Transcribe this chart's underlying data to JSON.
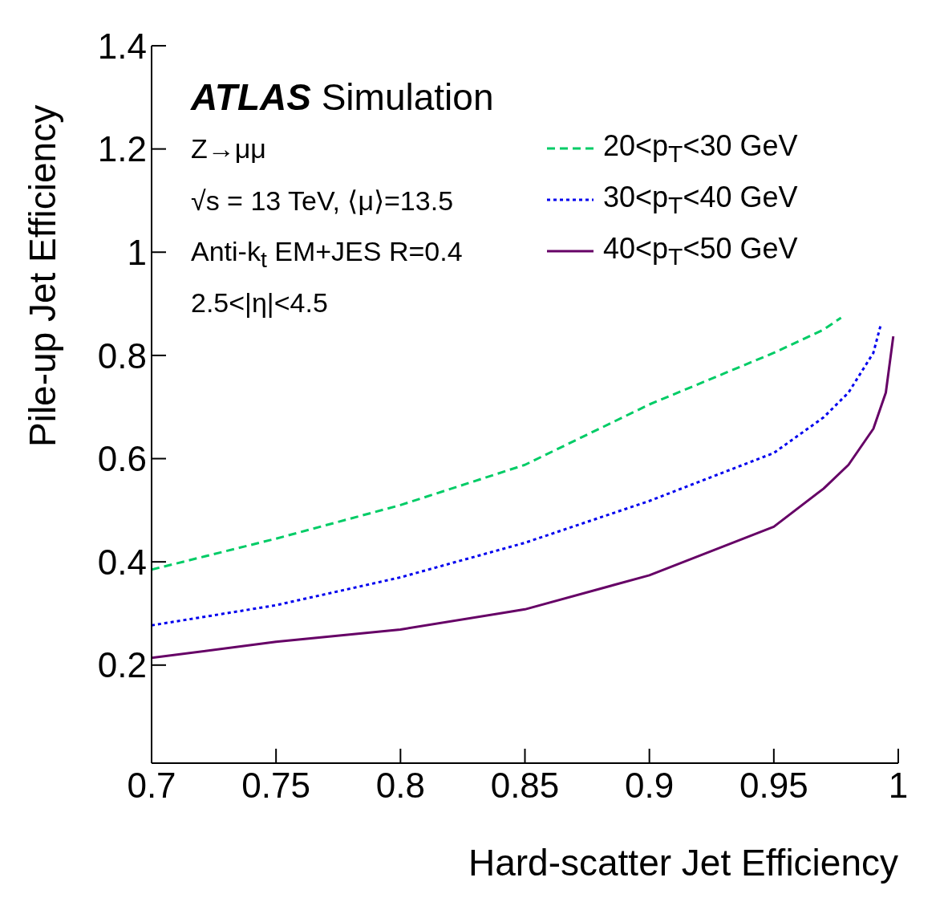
{
  "chart_data": {
    "type": "line",
    "xlabel": "Hard-scatter Jet Efficiency",
    "ylabel": "Pile-up Jet Efficiency",
    "xlim": [
      0.7,
      1
    ],
    "xticks": [
      0.7,
      0.75,
      0.8,
      0.85,
      0.9,
      0.95,
      1
    ],
    "ylim": [
      0.01,
      1.4
    ],
    "yticks": [
      0.2,
      0.4,
      0.6,
      0.8,
      1,
      1.2,
      1.4
    ],
    "legend": "top right",
    "marker": "none",
    "annotations": [
      "ATLAS Simulation",
      "Z→μμ",
      "√s = 13 TeV, ⟨μ⟩=13.5",
      "Anti-k$_{t}$ EM+JES R=0.4",
      "2.5<|η|<4.5"
    ],
    "series": [
      {
        "name": "20<p$_{T}$<30 GeV",
        "color": "#00cc66",
        "line_style": "dashed",
        "x": [
          0.7,
          0.75,
          0.8,
          0.85,
          0.9,
          0.93,
          0.95,
          0.97,
          0.977
        ],
        "values": [
          0.385,
          0.445,
          0.51,
          0.588,
          0.705,
          0.765,
          0.805,
          0.85,
          0.873
        ]
      },
      {
        "name": "30<p$_{T}$<40 GeV",
        "color": "#0000ee",
        "line_style": "dotted",
        "x": [
          0.7,
          0.75,
          0.8,
          0.85,
          0.9,
          0.95,
          0.97,
          0.98,
          0.99,
          0.993
        ],
        "values": [
          0.277,
          0.316,
          0.37,
          0.437,
          0.518,
          0.611,
          0.68,
          0.728,
          0.805,
          0.86
        ]
      },
      {
        "name": "40<p$_{T}$<50 GeV",
        "color": "#660066",
        "line_style": "solid",
        "x": [
          0.7,
          0.75,
          0.8,
          0.85,
          0.9,
          0.95,
          0.97,
          0.98,
          0.99,
          0.995,
          0.998
        ],
        "values": [
          0.214,
          0.245,
          0.269,
          0.308,
          0.374,
          0.468,
          0.542,
          0.588,
          0.658,
          0.728,
          0.837
        ]
      }
    ]
  }
}
